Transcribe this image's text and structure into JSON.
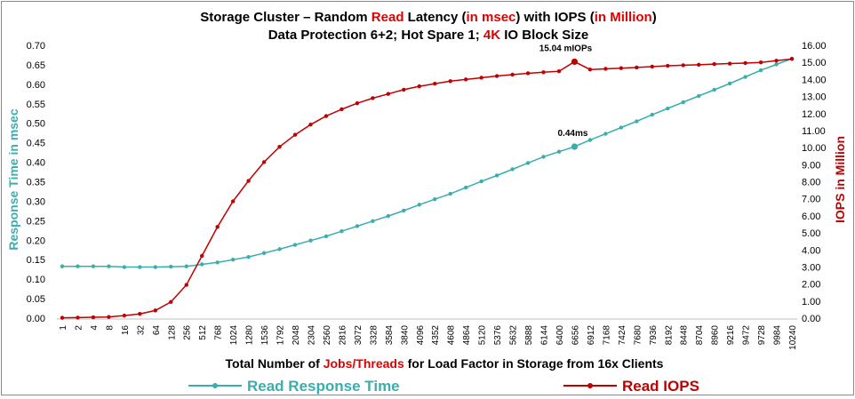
{
  "chart_data": {
    "type": "line",
    "title_parts": [
      {
        "text": "Storage Cluster – Random ",
        "color": "#000000"
      },
      {
        "text": "Read",
        "color": "#e00000"
      },
      {
        "text": " Latency (",
        "color": "#000000"
      },
      {
        "text": "in msec",
        "color": "#e00000"
      },
      {
        "text": ") with IOPS (",
        "color": "#000000"
      },
      {
        "text": "in Million",
        "color": "#e00000"
      },
      {
        "text": ")",
        "color": "#000000"
      }
    ],
    "subtitle_parts": [
      {
        "text": "Data Protection 6+2; Hot Spare 1; ",
        "color": "#000000"
      },
      {
        "text": "4K",
        "color": "#e00000"
      },
      {
        "text": " IO Block Size",
        "color": "#000000"
      }
    ],
    "xlabel_parts": [
      {
        "text": "Total Number of ",
        "color": "#000000"
      },
      {
        "text": "Jobs/Threads",
        "color": "#e00000"
      },
      {
        "text": " for Load Factor in  Storage from 16x Clients",
        "color": "#000000"
      }
    ],
    "ylabel_left": "Response Time in msec",
    "ylabel_right": "IOPS in Million",
    "ylim_left": [
      0,
      0.7
    ],
    "ylim_right": [
      0,
      16
    ],
    "yticks_left": [
      "0.00",
      "0.05",
      "0.10",
      "0.15",
      "0.20",
      "0.25",
      "0.30",
      "0.35",
      "0.40",
      "0.45",
      "0.50",
      "0.55",
      "0.60",
      "0.65",
      "0.70"
    ],
    "yticks_right": [
      "0.00",
      "1.00",
      "2.00",
      "3.00",
      "4.00",
      "5.00",
      "6.00",
      "7.00",
      "8.00",
      "9.00",
      "10.00",
      "11.00",
      "12.00",
      "13.00",
      "14.00",
      "15.00",
      "16.00"
    ],
    "categories": [
      "1",
      "2",
      "4",
      "8",
      "16",
      "32",
      "64",
      "128",
      "256",
      "512",
      "768",
      "1024",
      "1280",
      "1536",
      "1792",
      "2048",
      "2304",
      "2560",
      "2816",
      "3072",
      "3328",
      "3584",
      "3840",
      "4096",
      "4352",
      "4608",
      "4864",
      "5120",
      "5376",
      "5632",
      "5888",
      "6144",
      "6400",
      "6656",
      "6912",
      "7168",
      "7424",
      "7680",
      "7936",
      "8192",
      "8448",
      "8704",
      "8960",
      "9216",
      "9472",
      "9728",
      "9984",
      "10240"
    ],
    "series": [
      {
        "name": "Read Response Time",
        "axis": "left",
        "color": "#3aaeae",
        "values": [
          0.133,
          0.133,
          0.133,
          0.133,
          0.131,
          0.131,
          0.131,
          0.132,
          0.133,
          0.138,
          0.143,
          0.15,
          0.157,
          0.167,
          0.177,
          0.188,
          0.199,
          0.21,
          0.223,
          0.236,
          0.249,
          0.262,
          0.276,
          0.291,
          0.305,
          0.319,
          0.335,
          0.351,
          0.366,
          0.382,
          0.398,
          0.414,
          0.427,
          0.44,
          0.457,
          0.473,
          0.489,
          0.505,
          0.522,
          0.538,
          0.554,
          0.57,
          0.586,
          0.602,
          0.619,
          0.636,
          0.651,
          0.666
        ],
        "highlight_index": 33
      },
      {
        "name": "Read IOPS",
        "axis": "right",
        "color": "#c00000",
        "values": [
          0.02,
          0.03,
          0.05,
          0.07,
          0.15,
          0.25,
          0.45,
          0.95,
          1.95,
          3.65,
          5.35,
          6.85,
          8.05,
          9.15,
          10.05,
          10.75,
          11.35,
          11.85,
          12.25,
          12.6,
          12.9,
          13.15,
          13.4,
          13.6,
          13.75,
          13.9,
          14.0,
          14.1,
          14.2,
          14.28,
          14.36,
          14.42,
          14.48,
          15.04,
          14.58,
          14.62,
          14.66,
          14.7,
          14.75,
          14.8,
          14.83,
          14.86,
          14.9,
          14.93,
          14.96,
          15.0,
          15.1,
          15.2
        ],
        "highlight_index": 33
      }
    ],
    "annotations": [
      {
        "text": "15.04 mIOPs",
        "series": "Read IOPS",
        "index": 33
      },
      {
        "text": "0.44ms",
        "series": "Read Response Time",
        "index": 33
      }
    ],
    "legend_position": "bottom",
    "grid": false
  }
}
